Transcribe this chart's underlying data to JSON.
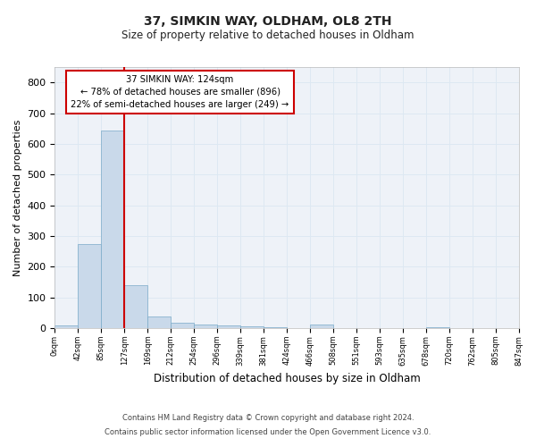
{
  "title": "37, SIMKIN WAY, OLDHAM, OL8 2TH",
  "subtitle": "Size of property relative to detached houses in Oldham",
  "xlabel": "Distribution of detached houses by size in Oldham",
  "ylabel": "Number of detached properties",
  "footer1": "Contains HM Land Registry data © Crown copyright and database right 2024.",
  "footer2": "Contains public sector information licensed under the Open Government Licence v3.0.",
  "bin_labels": [
    "0sqm",
    "42sqm",
    "85sqm",
    "127sqm",
    "169sqm",
    "212sqm",
    "254sqm",
    "296sqm",
    "339sqm",
    "381sqm",
    "424sqm",
    "466sqm",
    "508sqm",
    "551sqm",
    "593sqm",
    "635sqm",
    "678sqm",
    "720sqm",
    "762sqm",
    "805sqm",
    "847sqm"
  ],
  "bar_values": [
    8,
    275,
    643,
    140,
    38,
    18,
    11,
    9,
    6,
    3,
    0,
    11,
    0,
    0,
    0,
    0,
    3,
    0,
    0,
    0
  ],
  "property_line_bin": 3,
  "annotation_text": "37 SIMKIN WAY: 124sqm\n← 78% of detached houses are smaller (896)\n22% of semi-detached houses are larger (249) →",
  "bar_color": "#c9d9ea",
  "bar_edge_color": "#7aaac8",
  "line_color": "#cc0000",
  "annotation_box_color": "#ffffff",
  "annotation_box_edge": "#cc0000",
  "grid_color": "#dde8f2",
  "background_color": "#eef2f8",
  "ylim": [
    0,
    850
  ],
  "yticks": [
    0,
    100,
    200,
    300,
    400,
    500,
    600,
    700,
    800
  ]
}
